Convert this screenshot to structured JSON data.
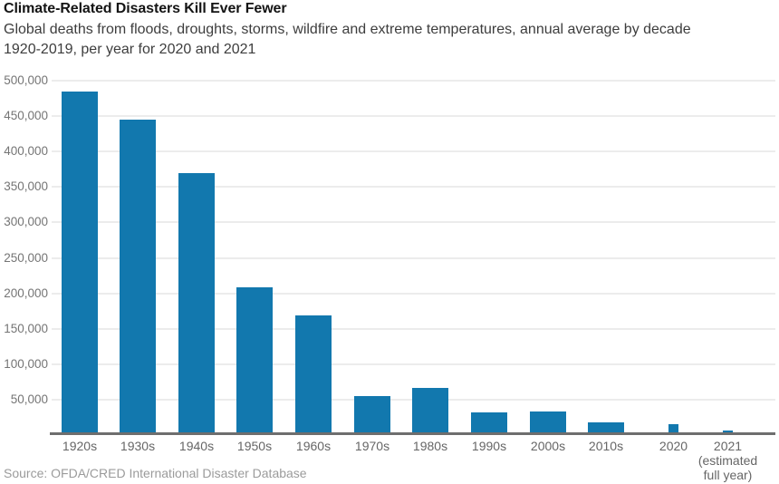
{
  "header": {
    "title": "Climate-Related Disasters Kill Ever Fewer",
    "subtitle_lines": [
      "Global deaths from floods, droughts, storms, wildfire and extreme temperatures, annual average by decade",
      "1920-2019, per year for 2020 and 2021"
    ]
  },
  "footer": {
    "source": "Source: OFDA/CRED International Disaster Database"
  },
  "colors": {
    "bar": "#1278ae",
    "gridline": "#ececec",
    "axis_line": "#6e6e6e",
    "ytick_label": "#757575",
    "xtick_label": "#666666",
    "title_text": "#141414",
    "subtitle_text": "#3d3d3d",
    "source_text": "#9b9b9b",
    "background": "#ffffff"
  },
  "chart_data": {
    "type": "bar",
    "title": "Climate-Related Disasters Kill Ever Fewer",
    "subtitle": "Global deaths from floods, droughts, storms, wildfire and extreme temperatures, annual average by decade 1920-2019, per year for 2020 and 2021",
    "source": "Source: OFDA/CRED International Disaster Database",
    "categories": [
      "1920s",
      "1930s",
      "1940s",
      "1950s",
      "1960s",
      "1970s",
      "1980s",
      "1990s",
      "2000s",
      "2010s",
      "2020",
      "2021"
    ],
    "values": [
      485000,
      445000,
      369000,
      208000,
      169000,
      55000,
      66000,
      32000,
      33000,
      18500,
      15000,
      7000
    ],
    "bar_spans": [
      "decade",
      "decade",
      "decade",
      "decade",
      "decade",
      "decade",
      "decade",
      "decade",
      "decade",
      "decade",
      "year",
      "year"
    ],
    "last_category_note_lines": [
      "(estimated",
      "full year)"
    ],
    "xlabel": "",
    "ylabel": "",
    "ylim": [
      0,
      500000
    ],
    "yticks": [
      50000,
      100000,
      150000,
      200000,
      250000,
      300000,
      350000,
      400000,
      450000,
      500000
    ],
    "ytick_labels": [
      "50,000",
      "100,000",
      "150,000",
      "200,000",
      "250,000",
      "300,000",
      "350,000",
      "400,000",
      "450,000",
      "500,000"
    ],
    "grid": "horizontal",
    "legend": "none"
  }
}
